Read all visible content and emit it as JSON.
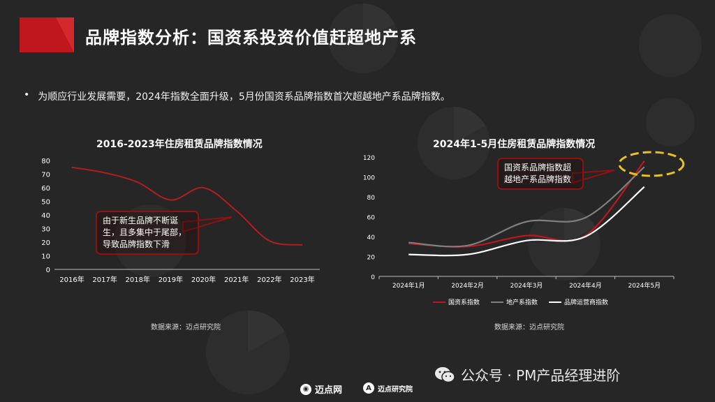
{
  "header": {
    "title": "品牌指数分析：国资系投资价值赶超地产系"
  },
  "bullet": {
    "mark": "•",
    "text": "为顺应行业发展需要，2024年指数全面升级，5月份国资系品牌指数首次超越地产系品牌指数。"
  },
  "charts": {
    "left": {
      "title": "2016-2023年住房租赁品牌指数情况",
      "source": "数据来源：迈点研究院",
      "callout": "由于新生品牌不断诞生，且多集中于尾部，导致品牌指数下滑"
    },
    "right": {
      "title": "2024年1-5月住房租赁品牌指数情况",
      "source": "数据来源：迈点研究院",
      "callout": "国资系品牌指数超越地产系品牌指数"
    }
  },
  "chart_data": [
    {
      "type": "line",
      "title": "2016-2023年住房租赁品牌指数情况",
      "categories": [
        "2016年",
        "2017年",
        "2018年",
        "2019年",
        "2020年",
        "2021年",
        "2022年",
        "2023年"
      ],
      "series": [
        {
          "values": [
            75,
            71,
            64,
            51,
            60,
            43,
            21,
            18
          ],
          "color": "#b01e1e"
        }
      ],
      "ylim": [
        0,
        80
      ],
      "yticks": [
        0,
        10,
        20,
        30,
        40,
        50,
        60,
        70,
        80
      ],
      "grid": false,
      "xlabel": "",
      "ylabel": ""
    },
    {
      "type": "line",
      "title": "2024年1-5月住房租赁品牌指数情况",
      "categories": [
        "2024年1月",
        "2024年2月",
        "2024年3月",
        "2024年4月",
        "2024年5月"
      ],
      "series": [
        {
          "name": "国资系指数",
          "values": [
            33,
            30,
            41,
            41,
            116
          ],
          "color": "#c0161d"
        },
        {
          "name": "地产系指数",
          "values": [
            34,
            31,
            55,
            59,
            110
          ],
          "color": "#7f7f7f"
        },
        {
          "name": "品牌运营商指数",
          "values": [
            22,
            22,
            36,
            40,
            90
          ],
          "color": "#ffffff"
        }
      ],
      "ylim": [
        0,
        120
      ],
      "yticks": [
        0,
        20,
        40,
        60,
        80,
        100,
        120
      ],
      "grid": false,
      "legend": "bottom",
      "xlabel": "",
      "ylabel": ""
    }
  ],
  "footer": {
    "logo1": "迈点网",
    "logo2": "迈点研究院",
    "logo1_icon": "circle-logo-icon",
    "logo2_icon": "a-logo-icon"
  },
  "watermark": {
    "text": "公众号 · PM产品经理进阶",
    "icon": "wechat-icon"
  },
  "colors": {
    "background": "#262626",
    "accent": "#c0161d",
    "grey_line": "#7f7f7f",
    "highlight": "#e8c21f"
  }
}
